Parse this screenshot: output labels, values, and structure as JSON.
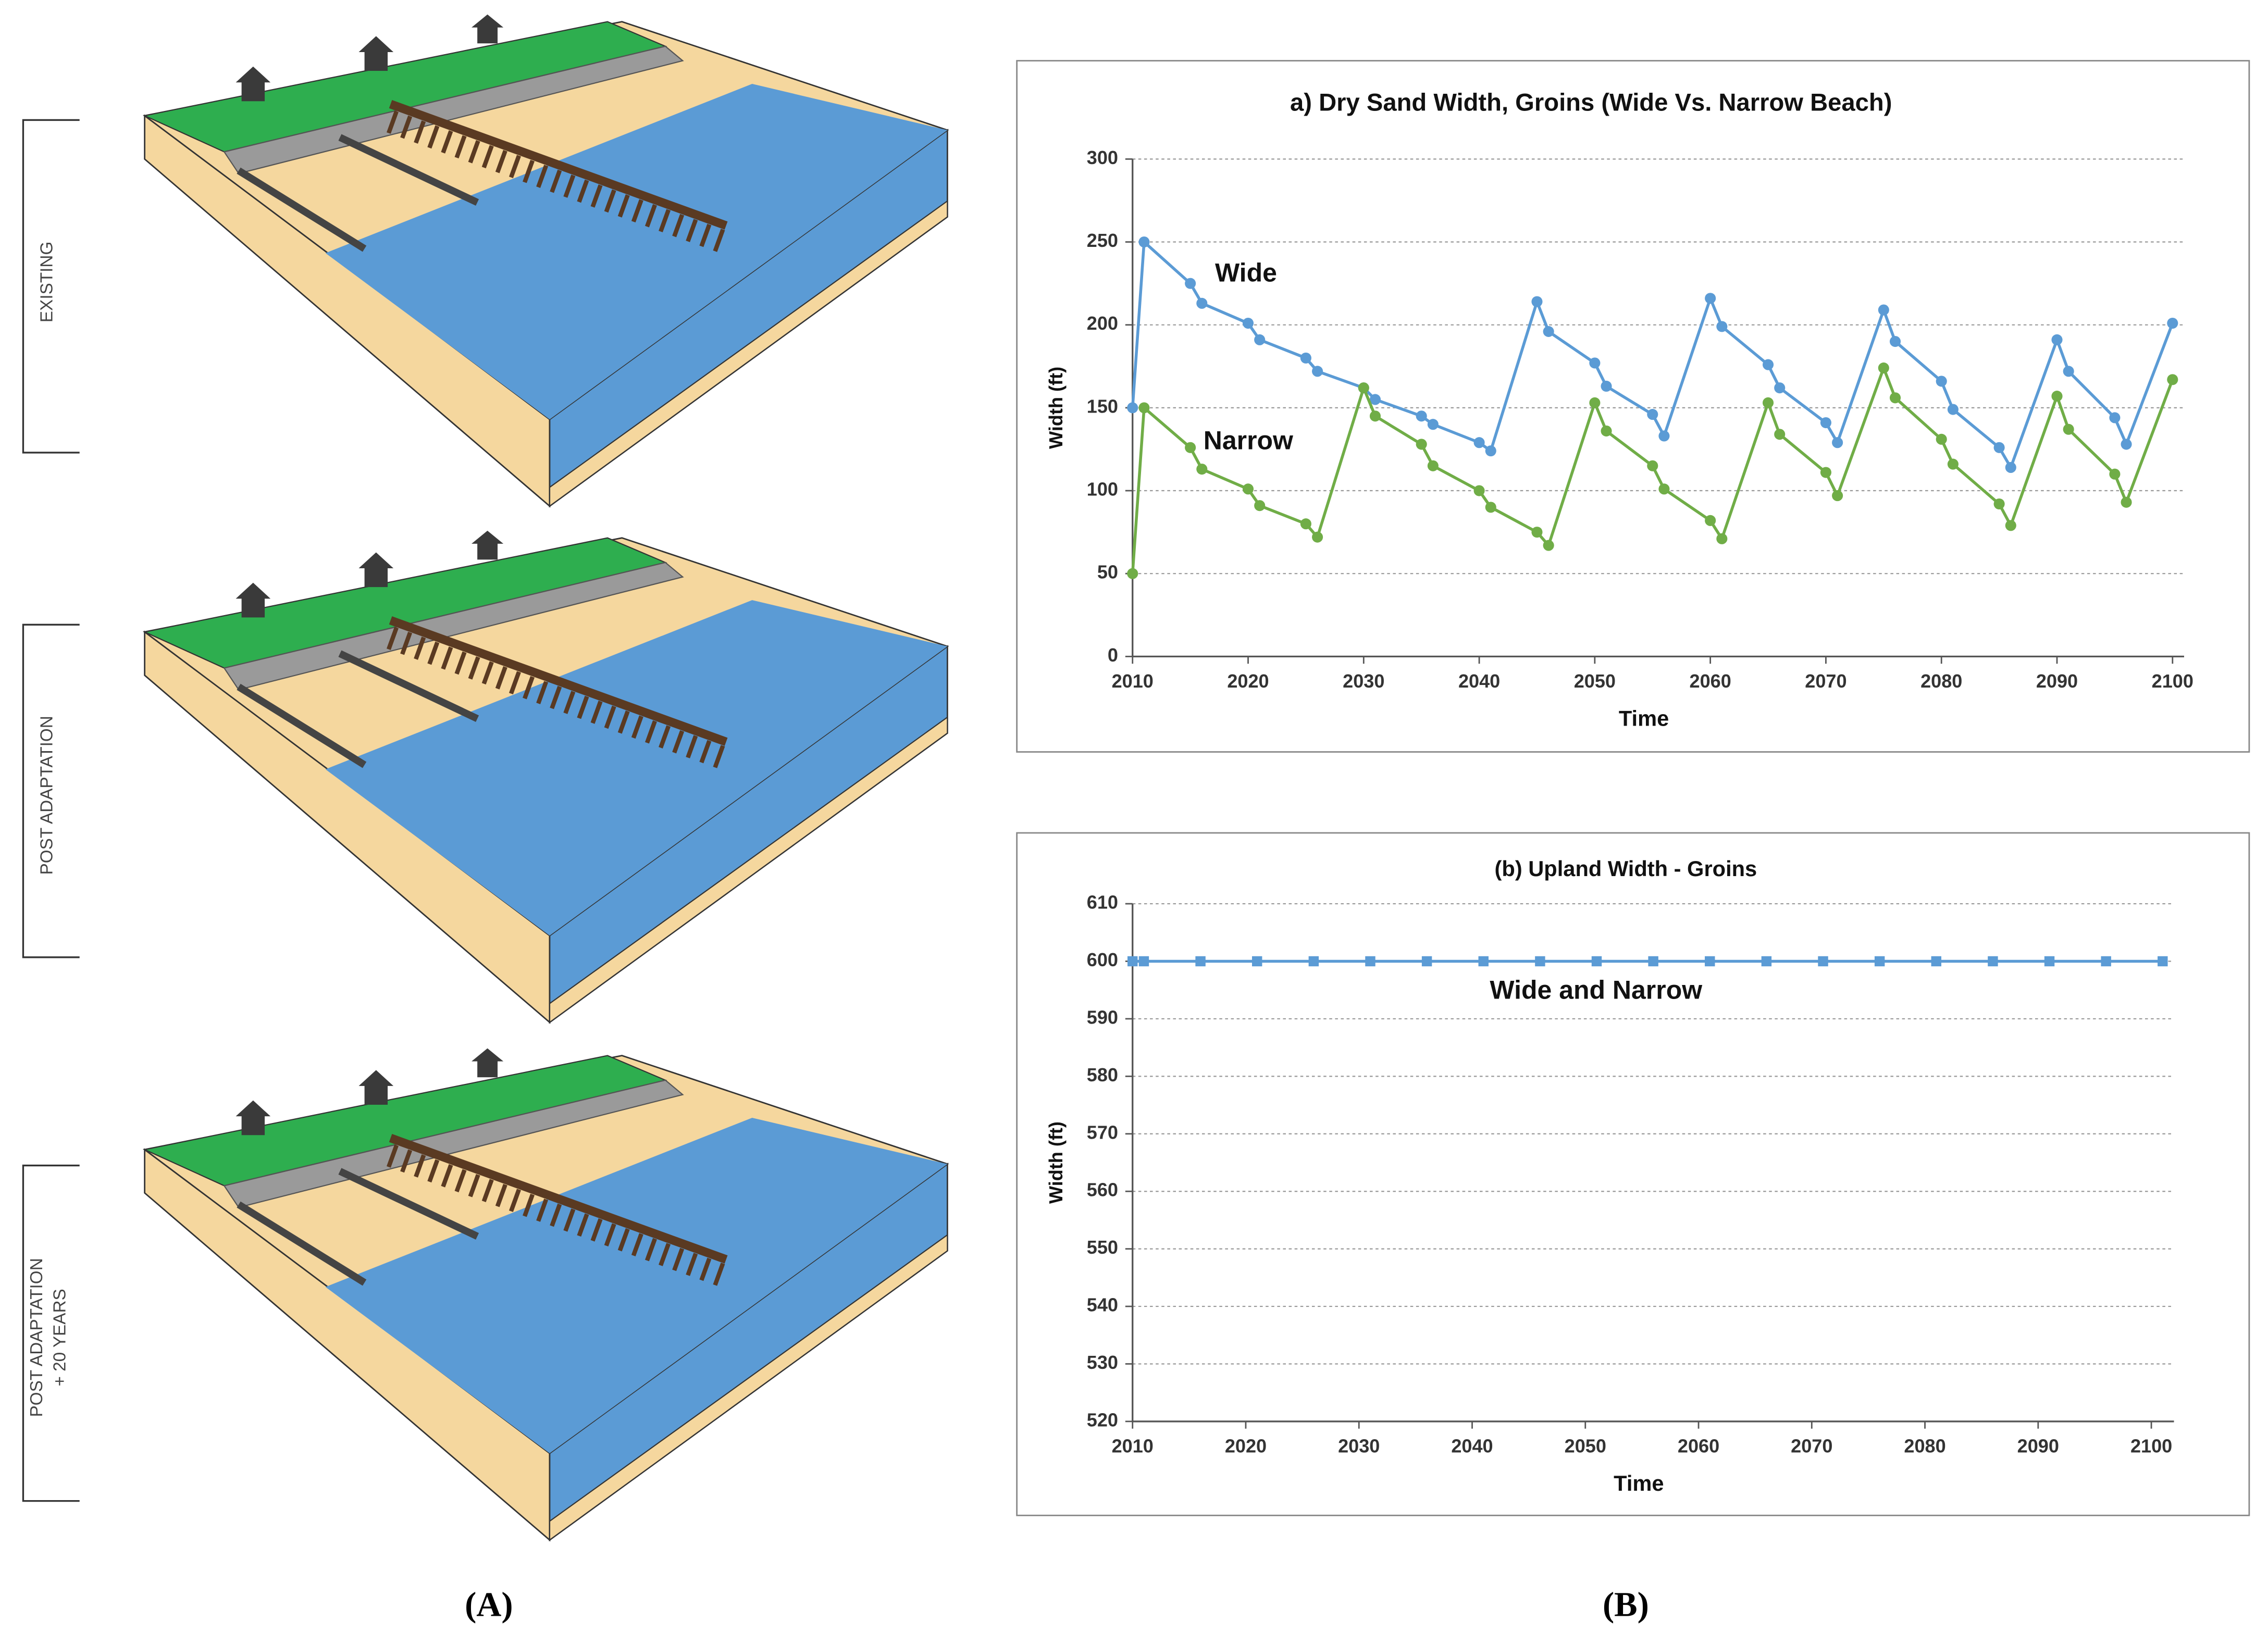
{
  "diagram_labels": [
    [
      "EXISTING"
    ],
    [
      "POST ADAPTATION"
    ],
    [
      "POST ADAPTATION",
      "+ 20 YEARS"
    ]
  ],
  "panel_labels": [
    "(A)",
    "(B)"
  ],
  "chart_data": [
    {
      "type": "line",
      "title": "a) Dry Sand Width, Groins (Wide Vs. Narrow Beach)",
      "x_label": "Time",
      "y_label": "Width (ft)",
      "marker": "circle",
      "grid": true,
      "x": [
        2010,
        2011,
        2015,
        2016,
        2020,
        2021,
        2025,
        2026,
        2030,
        2031,
        2035,
        2036,
        2040,
        2041,
        2045,
        2046,
        2050,
        2051,
        2055,
        2056,
        2060,
        2061,
        2065,
        2066,
        2070,
        2071,
        2075,
        2076,
        2080,
        2081,
        2085,
        2086,
        2090,
        2091,
        2095,
        2096,
        2100
      ],
      "series": [
        {
          "name": "Wide",
          "color": "#5b9bd5",
          "values": [
            150,
            250,
            225,
            213,
            201,
            191,
            180,
            172,
            162,
            155,
            145,
            140,
            129,
            124,
            214,
            196,
            177,
            163,
            146,
            133,
            216,
            199,
            176,
            162,
            141,
            129,
            209,
            190,
            166,
            149,
            126,
            114,
            191,
            172,
            144,
            128,
            201
          ]
        },
        {
          "name": "Narrow",
          "color": "#70ad47",
          "values": [
            50,
            150,
            126,
            113,
            101,
            91,
            80,
            72,
            162,
            145,
            128,
            115,
            100,
            90,
            75,
            67,
            153,
            136,
            115,
            101,
            82,
            71,
            153,
            134,
            111,
            97,
            174,
            156,
            131,
            116,
            92,
            79,
            157,
            137,
            110,
            93,
            167
          ]
        }
      ],
      "xlim": [
        2010,
        2101
      ],
      "xticks": [
        2010,
        2020,
        2030,
        2040,
        2050,
        2060,
        2070,
        2080,
        2090,
        2100
      ],
      "ylim": [
        0,
        300
      ],
      "yticks": [
        0,
        50,
        100,
        150,
        200,
        250,
        300
      ]
    },
    {
      "type": "line",
      "title": "(b) Upland Width - Groins",
      "x_label": "Time",
      "y_label": "Width (ft)",
      "marker": "square",
      "grid": true,
      "x": [
        2010,
        2011,
        2016,
        2021,
        2026,
        2031,
        2036,
        2041,
        2046,
        2051,
        2056,
        2061,
        2066,
        2071,
        2076,
        2081,
        2086,
        2091,
        2096,
        2101
      ],
      "series": [
        {
          "name": "Wide and Narrow",
          "color": "#5b9bd5",
          "values": [
            600,
            600,
            600,
            600,
            600,
            600,
            600,
            600,
            600,
            600,
            600,
            600,
            600,
            600,
            600,
            600,
            600,
            600,
            600,
            600
          ]
        }
      ],
      "xlim": [
        2010,
        2102
      ],
      "xticks": [
        2010,
        2020,
        2030,
        2040,
        2050,
        2060,
        2070,
        2080,
        2090,
        2100
      ],
      "ylim": [
        520,
        610
      ],
      "yticks": [
        520,
        530,
        540,
        550,
        560,
        570,
        580,
        590,
        600,
        610
      ]
    }
  ]
}
